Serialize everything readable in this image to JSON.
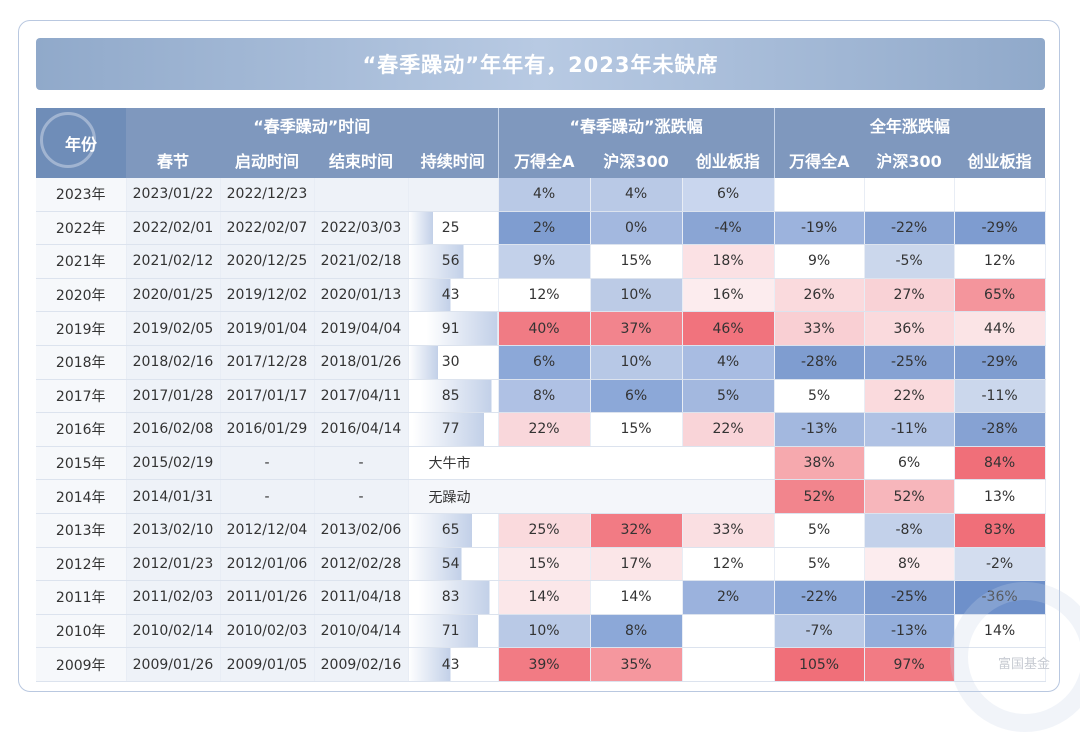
{
  "title": "“春季躁动”年年有，2023年未缺席",
  "headers": {
    "year": "年份",
    "group_time": "“春季躁动”时间",
    "group_spring": "“春季躁动”涨跌幅",
    "group_full": "全年涨跌幅",
    "cols": [
      "春节",
      "启动时间",
      "结束时间",
      "持续时间",
      "万得全A",
      "沪深300",
      "创业板指",
      "万得全A",
      "沪深300",
      "创业板指"
    ]
  },
  "rows": [
    {
      "year": "2023年",
      "spring": "2023/01/22",
      "start": "2022/12/23",
      "end": "",
      "dur": "",
      "dur_val": 0,
      "note": "",
      "s": [
        "4%",
        "4%",
        "6%"
      ],
      "f": [
        "",
        "",
        ""
      ]
    },
    {
      "year": "2022年",
      "spring": "2022/02/01",
      "start": "2022/02/07",
      "end": "2022/03/03",
      "dur": "25",
      "dur_val": 25,
      "note": "",
      "s": [
        "2%",
        "0%",
        "-4%"
      ],
      "f": [
        "-19%",
        "-22%",
        "-29%"
      ]
    },
    {
      "year": "2021年",
      "spring": "2021/02/12",
      "start": "2020/12/25",
      "end": "2021/02/18",
      "dur": "56",
      "dur_val": 56,
      "note": "",
      "s": [
        "9%",
        "15%",
        "18%"
      ],
      "f": [
        "9%",
        "-5%",
        "12%"
      ]
    },
    {
      "year": "2020年",
      "spring": "2020/01/25",
      "start": "2019/12/02",
      "end": "2020/01/13",
      "dur": "43",
      "dur_val": 43,
      "note": "",
      "s": [
        "12%",
        "10%",
        "16%"
      ],
      "f": [
        "26%",
        "27%",
        "65%"
      ]
    },
    {
      "year": "2019年",
      "spring": "2019/02/05",
      "start": "2019/01/04",
      "end": "2019/04/04",
      "dur": "91",
      "dur_val": 91,
      "note": "",
      "s": [
        "40%",
        "37%",
        "46%"
      ],
      "f": [
        "33%",
        "36%",
        "44%"
      ]
    },
    {
      "year": "2018年",
      "spring": "2018/02/16",
      "start": "2017/12/28",
      "end": "2018/01/26",
      "dur": "30",
      "dur_val": 30,
      "note": "",
      "s": [
        "6%",
        "10%",
        "4%"
      ],
      "f": [
        "-28%",
        "-25%",
        "-29%"
      ]
    },
    {
      "year": "2017年",
      "spring": "2017/01/28",
      "start": "2017/01/17",
      "end": "2017/04/11",
      "dur": "85",
      "dur_val": 85,
      "note": "",
      "s": [
        "8%",
        "6%",
        "5%"
      ],
      "f": [
        "5%",
        "22%",
        "-11%"
      ]
    },
    {
      "year": "2016年",
      "spring": "2016/02/08",
      "start": "2016/01/29",
      "end": "2016/04/14",
      "dur": "77",
      "dur_val": 77,
      "note": "",
      "s": [
        "22%",
        "15%",
        "22%"
      ],
      "f": [
        "-13%",
        "-11%",
        "-28%"
      ]
    },
    {
      "year": "2015年",
      "spring": "2015/02/19",
      "start": "-",
      "end": "-",
      "dur": "",
      "dur_val": 0,
      "note": "大牛市",
      "s": [
        "",
        "",
        ""
      ],
      "f": [
        "38%",
        "6%",
        "84%"
      ]
    },
    {
      "year": "2014年",
      "spring": "2014/01/31",
      "start": "-",
      "end": "-",
      "dur": "",
      "dur_val": 0,
      "note": "无躁动",
      "s": [
        "",
        "",
        ""
      ],
      "f": [
        "52%",
        "52%",
        "13%"
      ]
    },
    {
      "year": "2013年",
      "spring": "2013/02/10",
      "start": "2012/12/04",
      "end": "2013/02/06",
      "dur": "65",
      "dur_val": 65,
      "note": "",
      "s": [
        "25%",
        "32%",
        "33%"
      ],
      "f": [
        "5%",
        "-8%",
        "83%"
      ]
    },
    {
      "year": "2012年",
      "spring": "2012/01/23",
      "start": "2012/01/06",
      "end": "2012/02/28",
      "dur": "54",
      "dur_val": 54,
      "note": "",
      "s": [
        "15%",
        "17%",
        "12%"
      ],
      "f": [
        "5%",
        "8%",
        "-2%"
      ]
    },
    {
      "year": "2011年",
      "spring": "2011/02/03",
      "start": "2011/01/26",
      "end": "2011/04/18",
      "dur": "83",
      "dur_val": 83,
      "note": "",
      "s": [
        "14%",
        "14%",
        "2%"
      ],
      "f": [
        "-22%",
        "-25%",
        "-36%"
      ]
    },
    {
      "year": "2010年",
      "spring": "2010/02/14",
      "start": "2010/02/03",
      "end": "2010/04/14",
      "dur": "71",
      "dur_val": 71,
      "note": "",
      "s": [
        "10%",
        "8%",
        ""
      ],
      "f": [
        "-7%",
        "-13%",
        "14%"
      ]
    },
    {
      "year": "2009年",
      "spring": "2009/01/26",
      "start": "2009/01/05",
      "end": "2009/02/16",
      "dur": "43",
      "dur_val": 43,
      "note": "",
      "s": [
        "39%",
        "35%",
        ""
      ],
      "f": [
        "105%",
        "97%",
        ""
      ]
    }
  ],
  "cell_colors": {
    "s": [
      [
        "#b9c9e6",
        "#b9c9e6",
        "#c9d6ee"
      ],
      [
        "#7f9dd0",
        "#a3b8df",
        "#8aa5d4"
      ],
      [
        "#c3d1ea",
        "#ffffff",
        "#fbe1e4"
      ],
      [
        "#ffffff",
        "#bccbe6",
        "#fcecee"
      ],
      [
        "#f07b84",
        "#f2848d",
        "#f1737d"
      ],
      [
        "#8ca8d8",
        "#b7c8e6",
        "#a8bce2"
      ],
      [
        "#afc1e4",
        "#8ca8d8",
        "#a3b8df"
      ],
      [
        "#f9d7db",
        "#ffffff",
        "#f9d4d8"
      ],
      [
        "#ffffff",
        "#ffffff",
        "#ffffff"
      ],
      [
        "#ffffff",
        "#ffffff",
        "#ffffff"
      ],
      [
        "#fadadd",
        "#f27b84",
        "#fadfe2"
      ],
      [
        "#fbe9eb",
        "#fbe6e8",
        "#ffffff"
      ],
      [
        "#fbe7e9",
        "#ffffff",
        "#9bb2dd"
      ],
      [
        "#b9c9e6",
        "#8ca8d8",
        "#ffffff"
      ],
      [
        "#f27b84",
        "#f5979e",
        "#ffffff"
      ]
    ],
    "f": [
      [
        "#ffffff",
        "#ffffff",
        "#ffffff"
      ],
      [
        "#9cb3dd",
        "#8aa5d4",
        "#7e9cd0"
      ],
      [
        "#ffffff",
        "#cbd7ec",
        "#ffffff"
      ],
      [
        "#fadadd",
        "#f9d2d6",
        "#f4959c"
      ],
      [
        "#f9cfd3",
        "#fadadd",
        "#fbe4e6"
      ],
      [
        "#7f9dd0",
        "#86a2d3",
        "#7f9dd0"
      ],
      [
        "#ffffff",
        "#fadadd",
        "#cbd7ec"
      ],
      [
        "#a3b8df",
        "#b0c2e4",
        "#86a2d3"
      ],
      [
        "#f6a9ae",
        "#ffffff",
        "#f06f79"
      ],
      [
        "#f2858d",
        "#f7b6bb",
        "#ffffff"
      ],
      [
        "#ffffff",
        "#c3d1ea",
        "#f06f79"
      ],
      [
        "#ffffff",
        "#fcecee",
        "#d3ddef"
      ],
      [
        "#8ca8d8",
        "#7e9cd0",
        "#6e90ca"
      ],
      [
        "#b9c9e6",
        "#94aedb",
        "#ffffff"
      ],
      [
        "#f06f79",
        "#f27b84",
        "#ffffff"
      ]
    ],
    "dur_bar": "#c2d0e8"
  },
  "watermark": "富国基金"
}
